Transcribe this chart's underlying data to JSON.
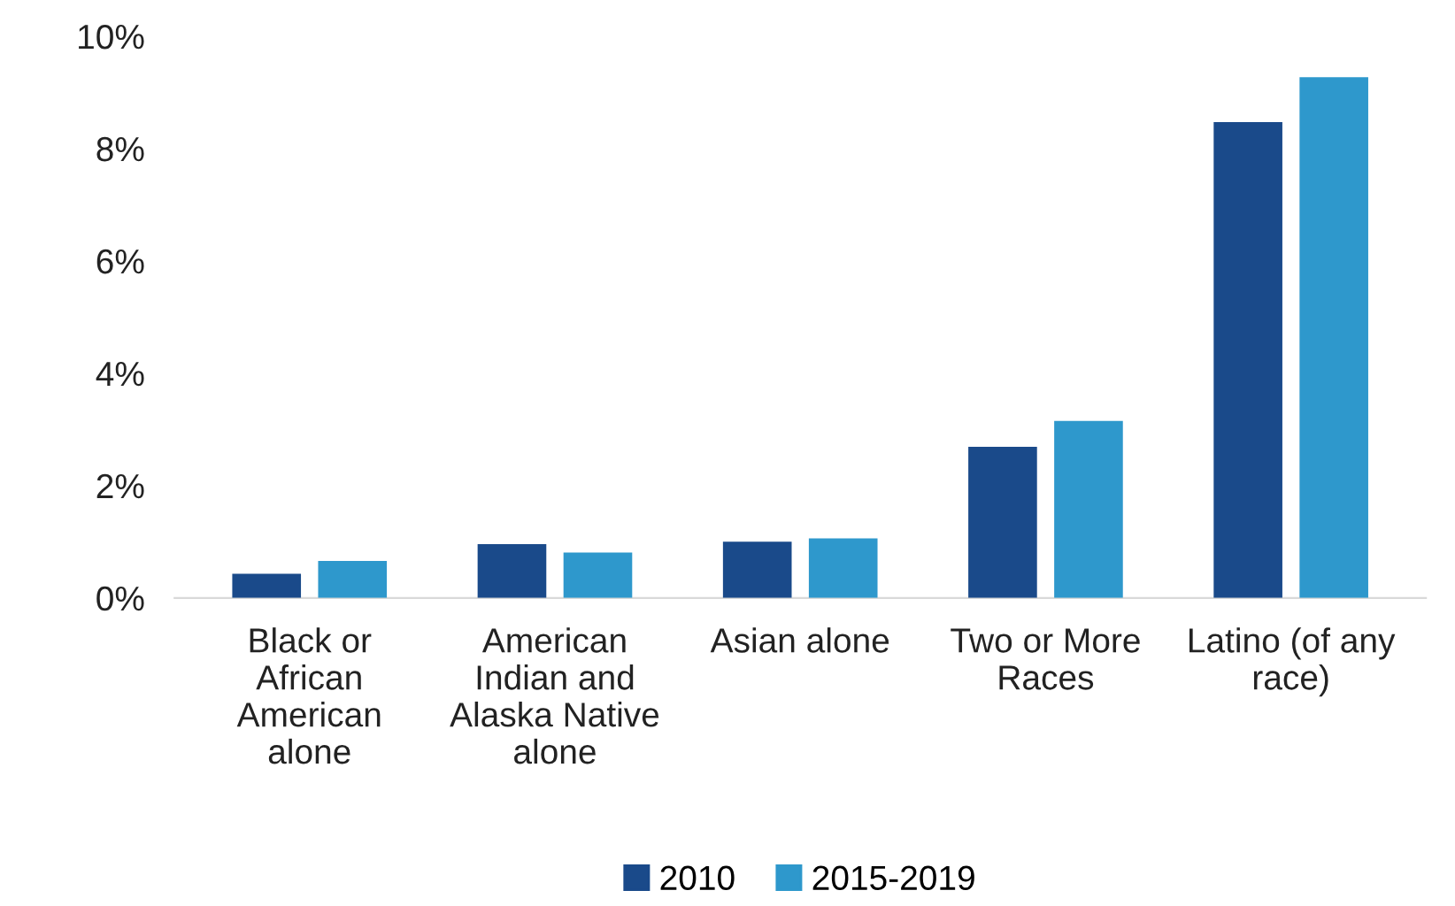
{
  "chart_data": {
    "type": "bar",
    "categories": [
      "Black or\nAfrican\nAmerican\nalone",
      "American\nIndian and\nAlaska Native\nalone",
      "Asian alone",
      "Two or More\nRaces",
      "Latino (of any\nrace)"
    ],
    "series": [
      {
        "name": "2010",
        "color": "#1a4a8a",
        "values": [
          0.43,
          0.96,
          1.0,
          2.69,
          8.47
        ]
      },
      {
        "name": "2015-2019",
        "color": "#2e98cc",
        "values": [
          0.66,
          0.81,
          1.06,
          3.15,
          9.27
        ]
      }
    ],
    "ylim": [
      0,
      10
    ],
    "yticks": [
      {
        "value": 0,
        "label": "0%"
      },
      {
        "value": 2,
        "label": "2%"
      },
      {
        "value": 4,
        "label": "4%"
      },
      {
        "value": 6,
        "label": "6%"
      },
      {
        "value": 8,
        "label": "8%"
      },
      {
        "value": 10,
        "label": "10%"
      }
    ],
    "grid": false,
    "legend": "bottom"
  }
}
